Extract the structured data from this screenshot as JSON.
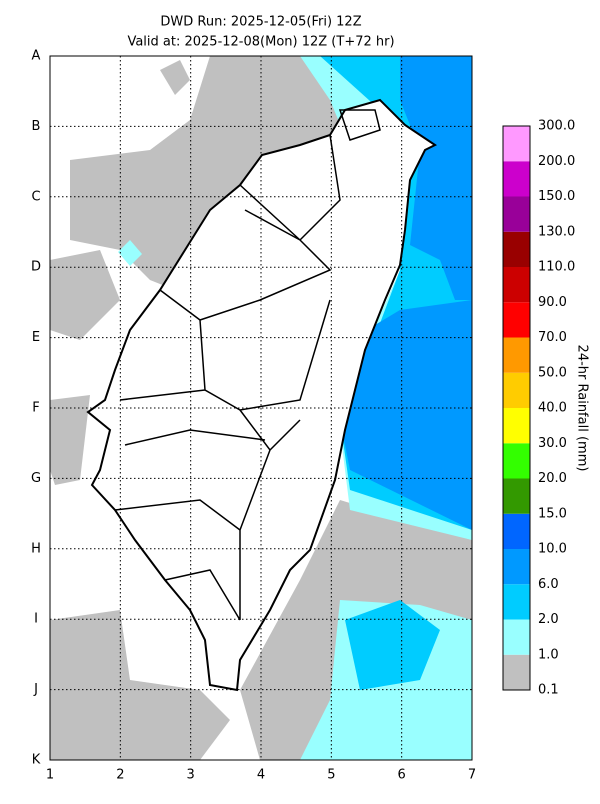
{
  "header": {
    "title": "DWD Run: 2025-12-05(Fri) 12Z",
    "subtitle": "Valid at: 2025-12-08(Mon) 12Z (T+72 hr)"
  },
  "grid": {
    "rows": [
      "A",
      "B",
      "C",
      "D",
      "E",
      "F",
      "G",
      "H",
      "I",
      "J",
      "K"
    ],
    "columns": [
      "1",
      "2",
      "3",
      "4",
      "5",
      "6",
      "7"
    ]
  },
  "colorbar": {
    "title": "24-hr Rainfall (mm)",
    "labels": [
      "0.1",
      "1.0",
      "2.0",
      "6.0",
      "10.0",
      "15.0",
      "20.0",
      "30.0",
      "40.0",
      "50.0",
      "70.0",
      "90.0",
      "110.0",
      "130.0",
      "150.0",
      "200.0",
      "300.0"
    ],
    "colors": [
      "#c0c0c0",
      "#99ffff",
      "#00ccff",
      "#0099ff",
      "#0066ff",
      "#339900",
      "#33ff00",
      "#ffff00",
      "#ffcc00",
      "#ff9900",
      "#ff0000",
      "#cc0000",
      "#990000",
      "#990099",
      "#cc00cc",
      "#ff99ff"
    ]
  }
}
